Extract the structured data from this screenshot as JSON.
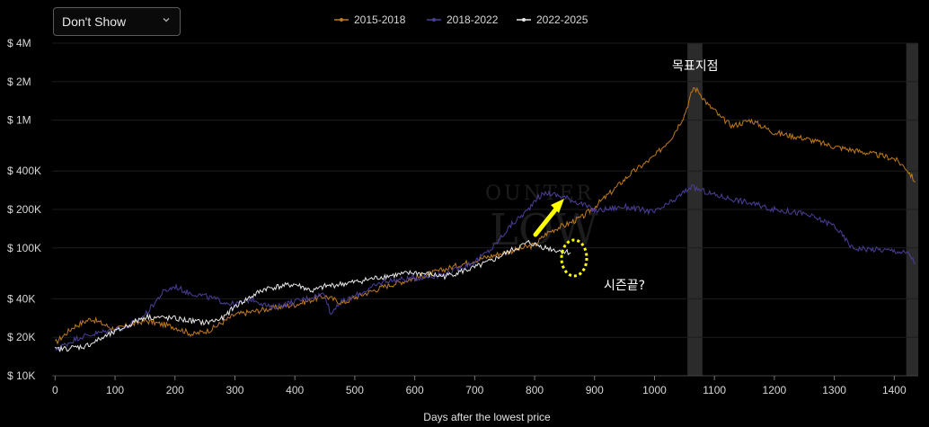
{
  "dropdown": {
    "selected": "Don't Show"
  },
  "colors": {
    "s2015": "#c07a1a",
    "s2018": "#4a3f9a",
    "s2022": "#e8e8e8",
    "highlight": "#ffff00",
    "band": "#2b2b2b"
  },
  "chart_data": {
    "type": "line",
    "title": "",
    "xlabel": "Days after the lowest price",
    "ylabel": "",
    "yscale": "log",
    "xlim": [
      -5,
      1440
    ],
    "ylim": [
      10000,
      4000000
    ],
    "legend_position": "top-center",
    "grid": "horizontal",
    "x_ticks": [
      0,
      100,
      200,
      300,
      400,
      500,
      600,
      700,
      800,
      900,
      1000,
      1100,
      1200,
      1300,
      1400
    ],
    "x_tick_labels": [
      "0",
      "100",
      "200",
      "300",
      "400",
      "500",
      "600",
      "700",
      "800",
      "900",
      "1000",
      "1100",
      "1200",
      "1300",
      "1400"
    ],
    "y_ticks": [
      10000,
      20000,
      40000,
      100000,
      200000,
      400000,
      1000000,
      2000000,
      4000000
    ],
    "y_tick_labels": [
      "$ 10K",
      "$ 20K",
      "$ 40K",
      "$ 100K",
      "$ 200K",
      "$ 400K",
      "$ 1M",
      "$ 2M",
      "$ 4M"
    ],
    "highlight_bands": [
      [
        1055,
        1080
      ],
      [
        1420,
        1440
      ]
    ],
    "annotations": [
      "목표지점",
      "시즌끝?"
    ],
    "series": [
      {
        "name": "2015-2018",
        "color": "#c07a1a",
        "points": [
          [
            0,
            18000
          ],
          [
            30,
            24000
          ],
          [
            60,
            28000
          ],
          [
            100,
            23000
          ],
          [
            150,
            27000
          ],
          [
            200,
            24000
          ],
          [
            230,
            21000
          ],
          [
            260,
            23000
          ],
          [
            300,
            30000
          ],
          [
            350,
            33000
          ],
          [
            400,
            36000
          ],
          [
            450,
            42000
          ],
          [
            480,
            37000
          ],
          [
            500,
            41000
          ],
          [
            550,
            50000
          ],
          [
            600,
            58000
          ],
          [
            650,
            68000
          ],
          [
            700,
            80000
          ],
          [
            750,
            92000
          ],
          [
            800,
            105000
          ],
          [
            820,
            130000
          ],
          [
            840,
            145000
          ],
          [
            850,
            150000
          ],
          [
            880,
            175000
          ],
          [
            900,
            210000
          ],
          [
            930,
            280000
          ],
          [
            960,
            380000
          ],
          [
            1000,
            520000
          ],
          [
            1030,
            750000
          ],
          [
            1050,
            1100000
          ],
          [
            1065,
            1800000
          ],
          [
            1075,
            1650000
          ],
          [
            1090,
            1300000
          ],
          [
            1100,
            1200000
          ],
          [
            1110,
            1050000
          ],
          [
            1130,
            900000
          ],
          [
            1160,
            1000000
          ],
          [
            1200,
            800000
          ],
          [
            1250,
            720000
          ],
          [
            1300,
            620000
          ],
          [
            1350,
            560000
          ],
          [
            1400,
            500000
          ],
          [
            1420,
            420000
          ],
          [
            1435,
            330000
          ]
        ]
      },
      {
        "name": "2018-2022",
        "color": "#4a3f9a",
        "points": [
          [
            0,
            16000
          ],
          [
            40,
            20000
          ],
          [
            80,
            22000
          ],
          [
            120,
            24000
          ],
          [
            150,
            30000
          ],
          [
            180,
            45000
          ],
          [
            200,
            50000
          ],
          [
            220,
            45000
          ],
          [
            250,
            42000
          ],
          [
            280,
            38000
          ],
          [
            300,
            36000
          ],
          [
            330,
            40000
          ],
          [
            360,
            34000
          ],
          [
            400,
            38000
          ],
          [
            450,
            44000
          ],
          [
            460,
            30000
          ],
          [
            470,
            36000
          ],
          [
            500,
            42000
          ],
          [
            550,
            55000
          ],
          [
            600,
            58000
          ],
          [
            650,
            62000
          ],
          [
            700,
            78000
          ],
          [
            730,
            100000
          ],
          [
            760,
            150000
          ],
          [
            790,
            200000
          ],
          [
            800,
            240000
          ],
          [
            820,
            270000
          ],
          [
            850,
            250000
          ],
          [
            880,
            220000
          ],
          [
            900,
            195000
          ],
          [
            950,
            210000
          ],
          [
            1000,
            190000
          ],
          [
            1030,
            230000
          ],
          [
            1060,
            300000
          ],
          [
            1080,
            280000
          ],
          [
            1100,
            260000
          ],
          [
            1150,
            230000
          ],
          [
            1200,
            200000
          ],
          [
            1250,
            185000
          ],
          [
            1300,
            150000
          ],
          [
            1330,
            100000
          ],
          [
            1400,
            95000
          ],
          [
            1425,
            90000
          ],
          [
            1435,
            75000
          ]
        ]
      },
      {
        "name": "2022-2025",
        "color": "#e8e8e8",
        "points": [
          [
            0,
            16000
          ],
          [
            50,
            17000
          ],
          [
            100,
            22000
          ],
          [
            150,
            29000
          ],
          [
            200,
            28000
          ],
          [
            250,
            26000
          ],
          [
            280,
            28000
          ],
          [
            300,
            35000
          ],
          [
            350,
            48000
          ],
          [
            400,
            52000
          ],
          [
            430,
            46000
          ],
          [
            450,
            50000
          ],
          [
            500,
            54000
          ],
          [
            550,
            60000
          ],
          [
            600,
            64000
          ],
          [
            650,
            60000
          ],
          [
            700,
            70000
          ],
          [
            730,
            80000
          ],
          [
            760,
            95000
          ],
          [
            790,
            110000
          ],
          [
            820,
            100000
          ],
          [
            840,
            95000
          ],
          [
            860,
            92000
          ]
        ]
      }
    ]
  }
}
